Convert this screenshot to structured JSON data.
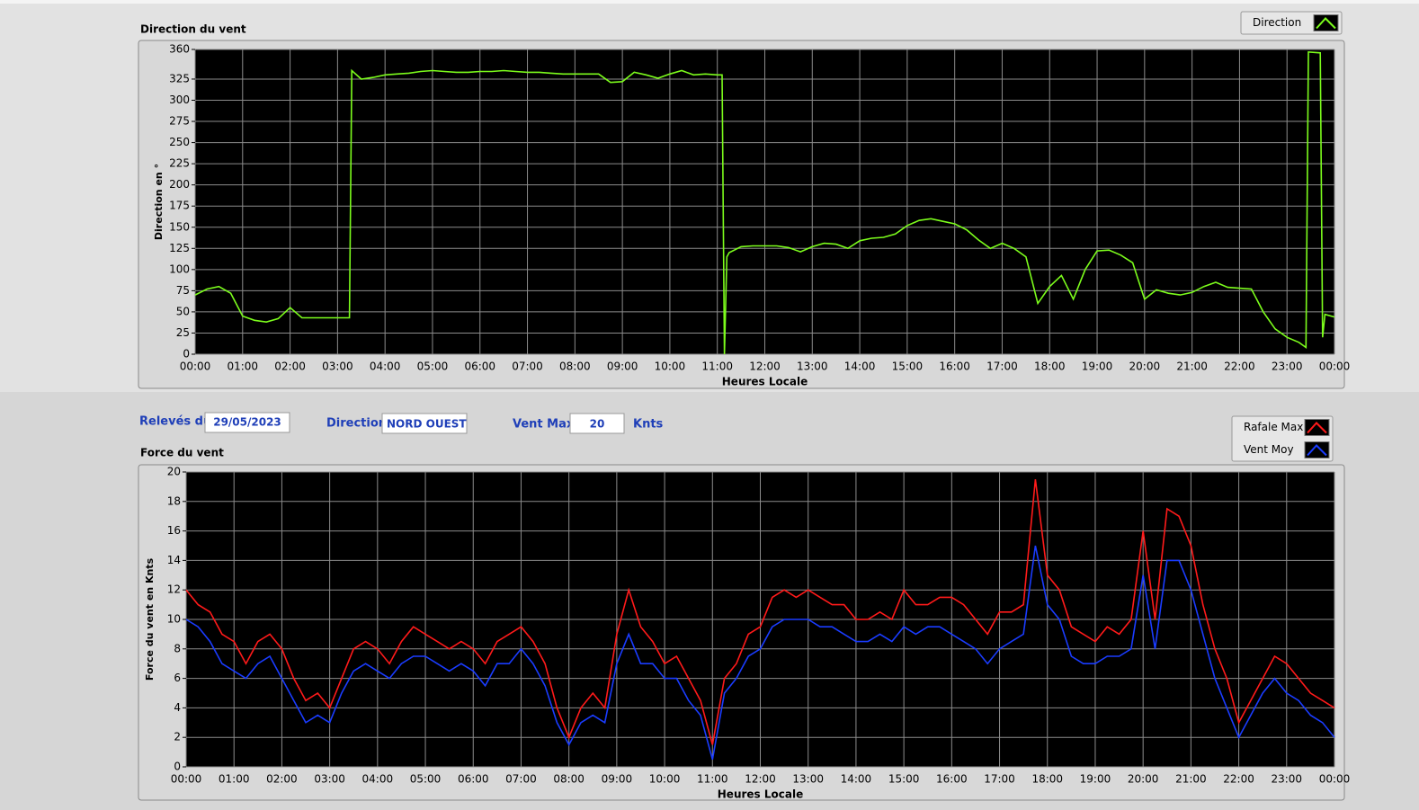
{
  "chart_data": [
    {
      "type": "line",
      "title": "Direction du vent",
      "x_label": "Heures Locale",
      "y_label": "Direction en °",
      "x": [
        0,
        0.25,
        0.5,
        0.75,
        1,
        1.25,
        1.5,
        1.75,
        2,
        2.25,
        2.5,
        2.75,
        3,
        3.25,
        3.3,
        3.5,
        3.75,
        4,
        4.25,
        4.5,
        4.75,
        5,
        5.25,
        5.5,
        5.75,
        6,
        6.25,
        6.5,
        6.75,
        7,
        7.25,
        7.5,
        7.75,
        8,
        8.25,
        8.5,
        8.75,
        9,
        9.25,
        9.5,
        9.75,
        10,
        10.25,
        10.5,
        10.75,
        11,
        11.1,
        11.15,
        11.2,
        11.25,
        11.5,
        11.75,
        12,
        12.25,
        12.5,
        12.75,
        13,
        13.25,
        13.5,
        13.75,
        14,
        14.25,
        14.5,
        14.75,
        15,
        15.25,
        15.5,
        15.75,
        16,
        16.25,
        16.5,
        16.75,
        17,
        17.25,
        17.5,
        17.75,
        18,
        18.25,
        18.5,
        18.75,
        19,
        19.25,
        19.5,
        19.75,
        20,
        20.25,
        20.5,
        20.75,
        21,
        21.25,
        21.5,
        21.75,
        22,
        22.25,
        22.5,
        22.75,
        23,
        23.25,
        23.4,
        23.45,
        23.7,
        23.75,
        23.8,
        24
      ],
      "series": [
        {
          "name": "Direction",
          "color": "#7cfc1c",
          "values": [
            70,
            77,
            80,
            72,
            45,
            40,
            38,
            42,
            55,
            43,
            43,
            43,
            43,
            43,
            335,
            325,
            327,
            330,
            331,
            332,
            334,
            335,
            334,
            333,
            333,
            334,
            334,
            335,
            334,
            333,
            333,
            332,
            331,
            331,
            331,
            331,
            321,
            322,
            333,
            330,
            326,
            331,
            335,
            330,
            331,
            330,
            330,
            0,
            115,
            120,
            127,
            128,
            128,
            128,
            126,
            121,
            127,
            131,
            130,
            125,
            134,
            137,
            138,
            142,
            152,
            158,
            160,
            157,
            154,
            147,
            135,
            125,
            131,
            125,
            115,
            60,
            80,
            93,
            65,
            100,
            122,
            123,
            117,
            108,
            65,
            76,
            72,
            70,
            73,
            80,
            85,
            79,
            78,
            77,
            50,
            30,
            20,
            14,
            8,
            357,
            356,
            20,
            47,
            44
          ]
        }
      ],
      "xlim": [
        0,
        24
      ],
      "xticks": [
        {
          "value": 0,
          "label": "00:00"
        },
        {
          "value": 1,
          "label": "01:00"
        },
        {
          "value": 2,
          "label": "02:00"
        },
        {
          "value": 3,
          "label": "03:00"
        },
        {
          "value": 4,
          "label": "04:00"
        },
        {
          "value": 5,
          "label": "05:00"
        },
        {
          "value": 6,
          "label": "06:00"
        },
        {
          "value": 7,
          "label": "07:00"
        },
        {
          "value": 8,
          "label": "08:00"
        },
        {
          "value": 9,
          "label": "09:00"
        },
        {
          "value": 10,
          "label": "10:00"
        },
        {
          "value": 11,
          "label": "11:00"
        },
        {
          "value": 12,
          "label": "12:00"
        },
        {
          "value": 13,
          "label": "13:00"
        },
        {
          "value": 14,
          "label": "14:00"
        },
        {
          "value": 15,
          "label": "15:00"
        },
        {
          "value": 16,
          "label": "16:00"
        },
        {
          "value": 17,
          "label": "17:00"
        },
        {
          "value": 18,
          "label": "18:00"
        },
        {
          "value": 19,
          "label": "19:00"
        },
        {
          "value": 20,
          "label": "20:00"
        },
        {
          "value": 21,
          "label": "21:00"
        },
        {
          "value": 22,
          "label": "22:00"
        },
        {
          "value": 23,
          "label": "23:00"
        },
        {
          "value": 24,
          "label": "00:00"
        }
      ],
      "ylim": [
        0,
        360
      ],
      "yticks": [
        0,
        25,
        50,
        75,
        100,
        125,
        150,
        175,
        200,
        225,
        250,
        275,
        300,
        325,
        360
      ],
      "grid": true,
      "legend": "top-right"
    },
    {
      "type": "line",
      "title": "Force du vent",
      "x_label": "Heures Locale",
      "y_label": "Force du vent en Knts",
      "x": [
        0,
        0.25,
        0.5,
        0.75,
        1,
        1.25,
        1.5,
        1.75,
        2,
        2.25,
        2.5,
        2.75,
        3,
        3.25,
        3.5,
        3.75,
        4,
        4.25,
        4.5,
        4.75,
        5,
        5.25,
        5.5,
        5.75,
        6,
        6.25,
        6.5,
        6.75,
        7,
        7.25,
        7.5,
        7.75,
        8,
        8.25,
        8.5,
        8.75,
        9,
        9.25,
        9.5,
        9.75,
        10,
        10.25,
        10.5,
        10.75,
        11,
        11.25,
        11.5,
        11.75,
        12,
        12.25,
        12.5,
        12.75,
        13,
        13.25,
        13.5,
        13.75,
        14,
        14.25,
        14.5,
        14.75,
        15,
        15.25,
        15.5,
        15.75,
        16,
        16.25,
        16.5,
        16.75,
        17,
        17.25,
        17.5,
        17.75,
        18,
        18.25,
        18.5,
        18.75,
        19,
        19.25,
        19.5,
        19.75,
        20,
        20.25,
        20.5,
        20.75,
        21,
        21.25,
        21.5,
        21.75,
        22,
        22.25,
        22.5,
        22.75,
        23,
        23.25,
        23.5,
        23.75,
        24
      ],
      "series": [
        {
          "name": "Rafale Max",
          "color": "#ff1a1a",
          "values": [
            12,
            11,
            10.5,
            9,
            8.5,
            7,
            8.5,
            9,
            8,
            6,
            4.5,
            5,
            4,
            6,
            8,
            8.5,
            8,
            7,
            8.5,
            9.5,
            9,
            8.5,
            8,
            8.5,
            8,
            7,
            8.5,
            9,
            9.5,
            8.5,
            7,
            4,
            2,
            4,
            5,
            4,
            9,
            12,
            9.5,
            8.5,
            7,
            7.5,
            6,
            4.5,
            1.5,
            6,
            7,
            9,
            9.5,
            11.5,
            12,
            11.5,
            12,
            11.5,
            11,
            11,
            10,
            10,
            10.5,
            10,
            12,
            11,
            11,
            11.5,
            11.5,
            11,
            10,
            9,
            10.5,
            10.5,
            11,
            19.5,
            13,
            12,
            9.5,
            9,
            8.5,
            9.5,
            9,
            10,
            16,
            10,
            17.5,
            17,
            15,
            11,
            8,
            6,
            3,
            4.5,
            6,
            7.5,
            7,
            6,
            5,
            4.5,
            4
          ]
        },
        {
          "name": "Vent Moy",
          "color": "#1a3cff",
          "values": [
            10,
            9.5,
            8.5,
            7,
            6.5,
            6,
            7,
            7.5,
            6,
            4.5,
            3,
            3.5,
            3,
            5,
            6.5,
            7,
            6.5,
            6,
            7,
            7.5,
            7.5,
            7,
            6.5,
            7,
            6.5,
            5.5,
            7,
            7,
            8,
            7,
            5.5,
            3,
            1.5,
            3,
            3.5,
            3,
            7,
            9,
            7,
            7,
            6,
            6,
            4.5,
            3.5,
            0.5,
            5,
            6,
            7.5,
            8,
            9.5,
            10,
            10,
            10,
            9.5,
            9.5,
            9,
            8.5,
            8.5,
            9,
            8.5,
            9.5,
            9,
            9.5,
            9.5,
            9,
            8.5,
            8,
            7,
            8,
            8.5,
            9,
            15,
            11,
            10,
            7.5,
            7,
            7,
            7.5,
            7.5,
            8,
            13,
            8,
            14,
            14,
            12,
            9,
            6,
            4,
            2,
            3.5,
            5,
            6,
            5,
            4.5,
            3.5,
            3,
            2
          ]
        }
      ],
      "xlim": [
        0,
        24
      ],
      "xticks": [
        {
          "value": 0,
          "label": "00:00"
        },
        {
          "value": 1,
          "label": "01:00"
        },
        {
          "value": 2,
          "label": "02:00"
        },
        {
          "value": 3,
          "label": "03:00"
        },
        {
          "value": 4,
          "label": "04:00"
        },
        {
          "value": 5,
          "label": "05:00"
        },
        {
          "value": 6,
          "label": "06:00"
        },
        {
          "value": 7,
          "label": "07:00"
        },
        {
          "value": 8,
          "label": "08:00"
        },
        {
          "value": 9,
          "label": "09:00"
        },
        {
          "value": 10,
          "label": "10:00"
        },
        {
          "value": 11,
          "label": "11:00"
        },
        {
          "value": 12,
          "label": "12:00"
        },
        {
          "value": 13,
          "label": "13:00"
        },
        {
          "value": 14,
          "label": "14:00"
        },
        {
          "value": 15,
          "label": "15:00"
        },
        {
          "value": 16,
          "label": "16:00"
        },
        {
          "value": 17,
          "label": "17:00"
        },
        {
          "value": 18,
          "label": "18:00"
        },
        {
          "value": 19,
          "label": "19:00"
        },
        {
          "value": 20,
          "label": "20:00"
        },
        {
          "value": 21,
          "label": "21:00"
        },
        {
          "value": 22,
          "label": "22:00"
        },
        {
          "value": 23,
          "label": "23:00"
        },
        {
          "value": 24,
          "label": "00:00"
        }
      ],
      "ylim": [
        0,
        20
      ],
      "yticks": [
        0,
        2,
        4,
        6,
        8,
        10,
        12,
        14,
        16,
        18,
        20
      ],
      "grid": true,
      "legend": "top-right"
    }
  ],
  "controls": {
    "date_label": "Relevés du",
    "date": "29/05/2023",
    "direction_label": "Direction",
    "direction": "NORD OUEST",
    "vent_max_label": "Vent Max",
    "vent_max": 20,
    "unit": "Knts"
  }
}
